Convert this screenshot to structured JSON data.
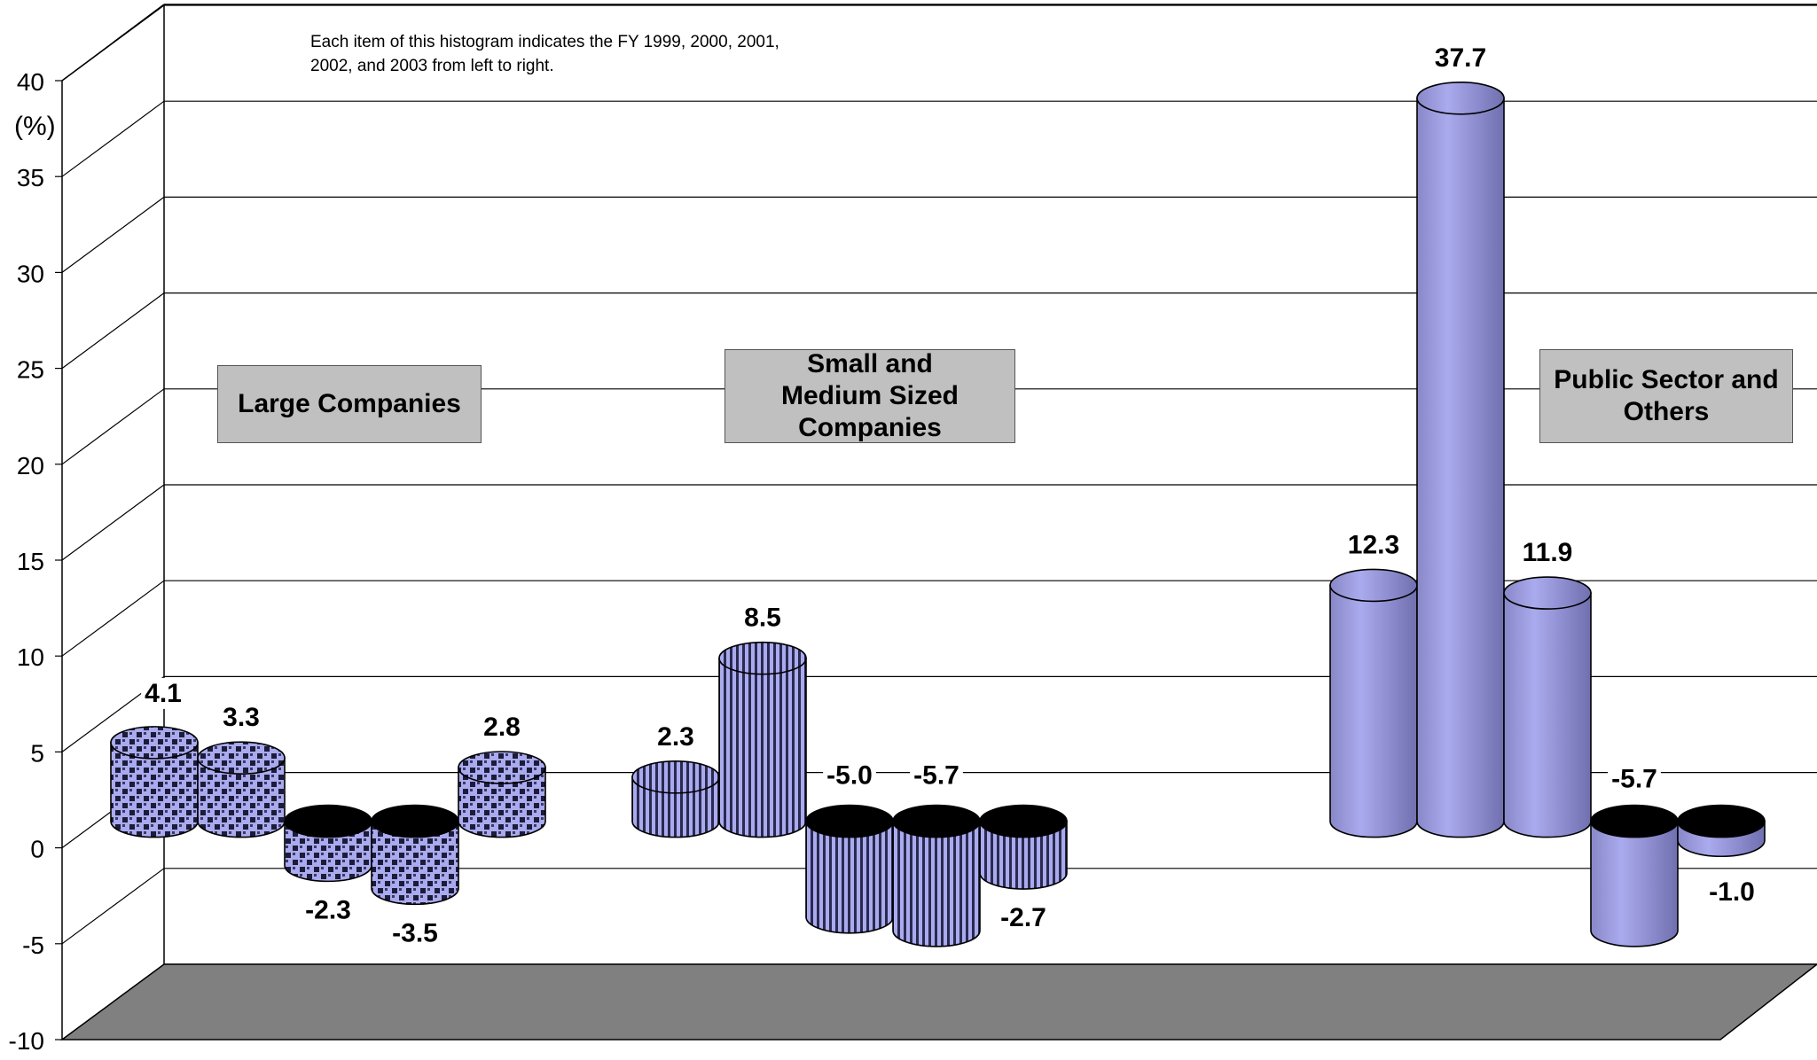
{
  "chart_data": {
    "type": "bar",
    "subtype": "3d-cylinder",
    "note": "Each item of this histogram indicates the FY 1999, 2000, 2001, 2002, and 2003 from left to right.",
    "ylabel": "(%)",
    "ylim": [
      -10,
      40
    ],
    "yticks": [
      -10,
      -5,
      0,
      5,
      10,
      15,
      20,
      25,
      30,
      35,
      40
    ],
    "grid": true,
    "groups": [
      {
        "name": "Large Companies",
        "pattern": "checker",
        "values": [
          4.1,
          3.3,
          -2.3,
          -3.5,
          2.8
        ],
        "value_labels": [
          "4.1",
          "3.3",
          "-2.3",
          "-3.5",
          "2.8"
        ]
      },
      {
        "name": "Small and Medium Sized Companies",
        "pattern": "stripes",
        "values": [
          2.3,
          8.5,
          -5.0,
          -5.7,
          -2.7
        ],
        "value_labels": [
          "2.3",
          "8.5",
          "-5.0",
          "-5.7",
          "-2.7"
        ]
      },
      {
        "name": "Public Sector and Others",
        "pattern": "solid",
        "values": [
          12.3,
          37.7,
          11.9,
          -5.7,
          -1.0
        ],
        "value_labels": [
          "12.3",
          "37.7",
          "11.9",
          "-5.7",
          "-1.0"
        ]
      }
    ],
    "colors": {
      "bar": "#aaaaee",
      "bar_dark": "#7a7ab8",
      "top": "#b8b8f0",
      "floor": "#808080",
      "label_box": "#c0c0c0"
    }
  }
}
